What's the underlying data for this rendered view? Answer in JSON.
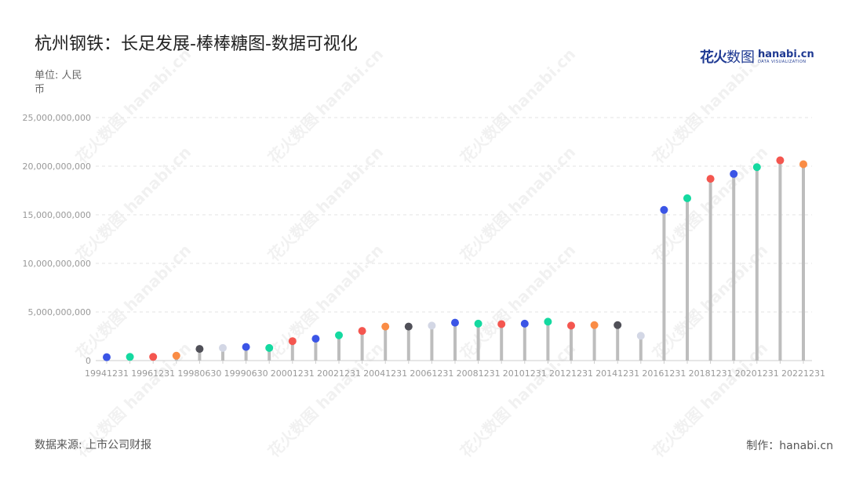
{
  "title": "杭州钢铁：长足发展-棒棒糖图-数据可视化",
  "unit_label": "单位: 人民币",
  "source_label": "数据来源: 上市公司财报",
  "maker_label": "制作：hanabi.cn",
  "logo": {
    "cn_bold": "花火",
    "cn": "数图",
    "en": "hanabi.cn",
    "en_sub": "DATA VISUALIZATION"
  },
  "watermark_text": "花火数图 hanabi.cn",
  "colors": {
    "stem": "#bdbdbd",
    "grid": "#e3e3e3",
    "axis": "#cccccc"
  },
  "chart_data": {
    "type": "lollipop",
    "title": "杭州钢铁：长足发展-棒棒糖图-数据可视化",
    "ylabel": "单位: 人民币",
    "ylim": [
      0,
      25000000000
    ],
    "yticks": [
      0,
      5000000000,
      10000000000,
      15000000000,
      20000000000,
      25000000000
    ],
    "ytick_labels": [
      "0",
      "5,000,000,000",
      "10,000,000,000",
      "15,000,000,000",
      "20,000,000,000",
      "25,000,000,000"
    ],
    "grid": true,
    "x_tick_labels": [
      "19941231",
      "19961231",
      "19980630",
      "19990630",
      "20001231",
      "20021231",
      "20041231",
      "20061231",
      "20081231",
      "20101231",
      "20121231",
      "20141231",
      "20161231",
      "20181231",
      "20201231",
      "20221231"
    ],
    "points": [
      {
        "x": "19941231",
        "value": 350000000,
        "color": "#3b55e6"
      },
      {
        "x": "19951231",
        "value": 380000000,
        "color": "#14d9a0"
      },
      {
        "x": "19961231",
        "value": 380000000,
        "color": "#f4564f"
      },
      {
        "x": "19971231",
        "value": 500000000,
        "color": "#fa8c45"
      },
      {
        "x": "19980630",
        "value": 1200000000,
        "color": "#505058"
      },
      {
        "x": "19981231",
        "value": 1300000000,
        "color": "#d3d7e5"
      },
      {
        "x": "19990630",
        "value": 1400000000,
        "color": "#3b55e6"
      },
      {
        "x": "19991231",
        "value": 1300000000,
        "color": "#14d9a0"
      },
      {
        "x": "20001231",
        "value": 2000000000,
        "color": "#f4564f"
      },
      {
        "x": "20011231",
        "value": 2250000000,
        "color": "#3b55e6"
      },
      {
        "x": "20021231",
        "value": 2600000000,
        "color": "#14d9a0"
      },
      {
        "x": "20031231",
        "value": 3050000000,
        "color": "#f4564f"
      },
      {
        "x": "20041231",
        "value": 3500000000,
        "color": "#fa8c45"
      },
      {
        "x": "20051231",
        "value": 3500000000,
        "color": "#505058"
      },
      {
        "x": "20061231",
        "value": 3600000000,
        "color": "#d3d7e5"
      },
      {
        "x": "20071231",
        "value": 3900000000,
        "color": "#3b55e6"
      },
      {
        "x": "20081231",
        "value": 3800000000,
        "color": "#14d9a0"
      },
      {
        "x": "20091231",
        "value": 3750000000,
        "color": "#f4564f"
      },
      {
        "x": "20101231",
        "value": 3800000000,
        "color": "#3b55e6"
      },
      {
        "x": "20111231",
        "value": 4000000000,
        "color": "#14d9a0"
      },
      {
        "x": "20121231",
        "value": 3600000000,
        "color": "#f4564f"
      },
      {
        "x": "20131231",
        "value": 3650000000,
        "color": "#fa8c45"
      },
      {
        "x": "20141231",
        "value": 3650000000,
        "color": "#505058"
      },
      {
        "x": "20151231",
        "value": 2550000000,
        "color": "#d3d7e5"
      },
      {
        "x": "20161231",
        "value": 15500000000,
        "color": "#3b55e6"
      },
      {
        "x": "20171231",
        "value": 16700000000,
        "color": "#14d9a0"
      },
      {
        "x": "20181231",
        "value": 18700000000,
        "color": "#f4564f"
      },
      {
        "x": "20191231",
        "value": 19200000000,
        "color": "#3b55e6"
      },
      {
        "x": "20201231",
        "value": 19900000000,
        "color": "#14d9a0"
      },
      {
        "x": "20211231",
        "value": 20600000000,
        "color": "#f4564f"
      },
      {
        "x": "20221231",
        "value": 20200000000,
        "color": "#fa8c45"
      }
    ]
  }
}
